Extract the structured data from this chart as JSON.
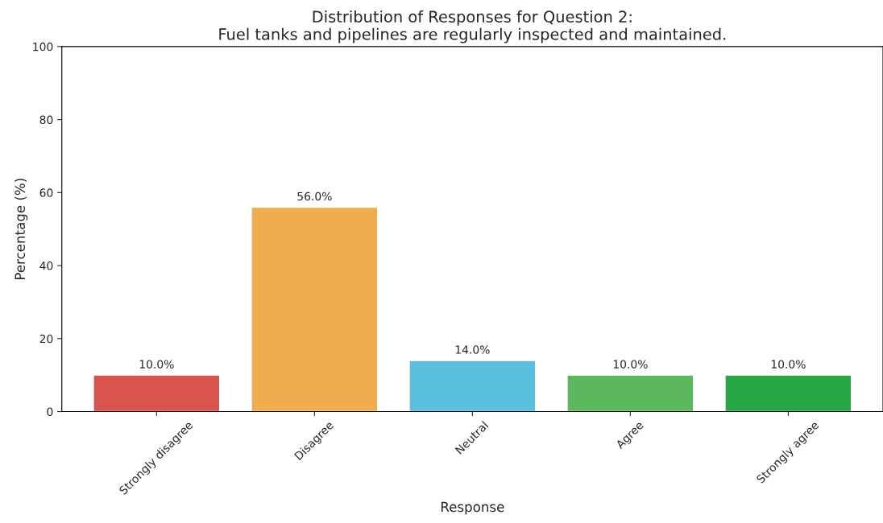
{
  "chart_data": {
    "type": "bar",
    "title": "Distribution of Responses for Question 2:\nFuel tanks and pipelines are regularly inspected and maintained.",
    "xlabel": "Response",
    "ylabel": "Percentage (%)",
    "categories": [
      "Strongly disagree",
      "Disagree",
      "Neutral",
      "Agree",
      "Strongly agree"
    ],
    "values": [
      10,
      56,
      14,
      10,
      10
    ],
    "value_labels": [
      "10.0%",
      "56.0%",
      "14.0%",
      "10.0%",
      "10.0%"
    ],
    "colors": [
      "#d9534f",
      "#f0ad4e",
      "#5bc0de",
      "#5cb85c",
      "#28a745"
    ],
    "ylim": [
      0,
      100
    ],
    "yticks": [
      0,
      20,
      40,
      60,
      80,
      100
    ],
    "grid": false,
    "legend": false
  }
}
